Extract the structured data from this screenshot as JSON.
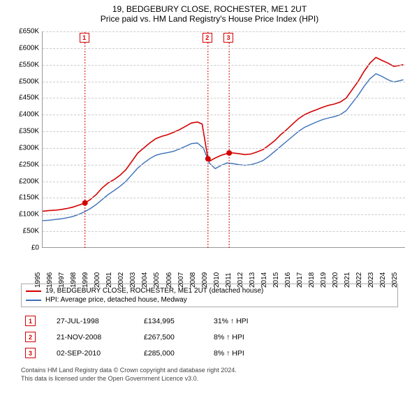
{
  "title": "19, BEDGEBURY CLOSE, ROCHESTER, ME1 2UT",
  "subtitle": "Price paid vs. HM Land Registry's House Price Index (HPI)",
  "chart": {
    "type": "line",
    "background_color": "#ffffff",
    "grid_color": "#cccccc",
    "axis_color": "#999999",
    "ylim": [
      0,
      650000
    ],
    "ytick_step": 50000,
    "yticks": [
      "£0",
      "£50K",
      "£100K",
      "£150K",
      "£200K",
      "£250K",
      "£300K",
      "£350K",
      "£400K",
      "£450K",
      "£500K",
      "£550K",
      "£600K",
      "£650K"
    ],
    "xlim": [
      1995,
      2025.5
    ],
    "xticks": [
      1995,
      1996,
      1997,
      1998,
      1999,
      2000,
      2001,
      2002,
      2003,
      2004,
      2005,
      2006,
      2007,
      2008,
      2009,
      2010,
      2011,
      2012,
      2013,
      2014,
      2015,
      2016,
      2017,
      2018,
      2019,
      2020,
      2021,
      2022,
      2023,
      2024,
      2025
    ],
    "series": [
      {
        "name": "19, BEDGEBURY CLOSE, ROCHESTER, ME1 2UT (detached house)",
        "color": "#d40000",
        "line_width": 1.6,
        "data": [
          [
            1995,
            110000
          ],
          [
            1995.5,
            112000
          ],
          [
            1996,
            113000
          ],
          [
            1996.5,
            115000
          ],
          [
            1997,
            118000
          ],
          [
            1997.5,
            122000
          ],
          [
            1998,
            128000
          ],
          [
            1998.56,
            134995
          ],
          [
            1999,
            145000
          ],
          [
            1999.5,
            160000
          ],
          [
            2000,
            180000
          ],
          [
            2000.5,
            195000
          ],
          [
            2001,
            205000
          ],
          [
            2001.5,
            218000
          ],
          [
            2002,
            235000
          ],
          [
            2002.5,
            260000
          ],
          [
            2003,
            285000
          ],
          [
            2003.5,
            300000
          ],
          [
            2004,
            315000
          ],
          [
            2004.5,
            328000
          ],
          [
            2005,
            335000
          ],
          [
            2005.5,
            340000
          ],
          [
            2006,
            347000
          ],
          [
            2006.5,
            355000
          ],
          [
            2007,
            365000
          ],
          [
            2007.5,
            375000
          ],
          [
            2008,
            378000
          ],
          [
            2008.4,
            372000
          ],
          [
            2008.89,
            267500
          ],
          [
            2009,
            260000
          ],
          [
            2009.5,
            270000
          ],
          [
            2010,
            278000
          ],
          [
            2010.67,
            285000
          ],
          [
            2011,
            285000
          ],
          [
            2011.5,
            283000
          ],
          [
            2012,
            280000
          ],
          [
            2012.5,
            282000
          ],
          [
            2013,
            288000
          ],
          [
            2013.5,
            295000
          ],
          [
            2014,
            308000
          ],
          [
            2014.5,
            322000
          ],
          [
            2015,
            340000
          ],
          [
            2015.5,
            355000
          ],
          [
            2016,
            372000
          ],
          [
            2016.5,
            388000
          ],
          [
            2017,
            400000
          ],
          [
            2017.5,
            408000
          ],
          [
            2018,
            415000
          ],
          [
            2018.5,
            422000
          ],
          [
            2019,
            428000
          ],
          [
            2019.5,
            432000
          ],
          [
            2020,
            438000
          ],
          [
            2020.5,
            450000
          ],
          [
            2021,
            475000
          ],
          [
            2021.5,
            500000
          ],
          [
            2022,
            530000
          ],
          [
            2022.5,
            555000
          ],
          [
            2023,
            572000
          ],
          [
            2023.5,
            563000
          ],
          [
            2024,
            555000
          ],
          [
            2024.5,
            545000
          ],
          [
            2025,
            548000
          ],
          [
            2025.3,
            550000
          ]
        ]
      },
      {
        "name": "HPI: Average price, detached house, Medway",
        "color": "#3a6fb7",
        "line_width": 1.4,
        "data": [
          [
            1995,
            82000
          ],
          [
            1995.5,
            83000
          ],
          [
            1996,
            85000
          ],
          [
            1996.5,
            87000
          ],
          [
            1997,
            90000
          ],
          [
            1997.5,
            94000
          ],
          [
            1998,
            100000
          ],
          [
            1998.5,
            108000
          ],
          [
            1999,
            118000
          ],
          [
            1999.5,
            130000
          ],
          [
            2000,
            145000
          ],
          [
            2000.5,
            160000
          ],
          [
            2001,
            172000
          ],
          [
            2001.5,
            185000
          ],
          [
            2002,
            200000
          ],
          [
            2002.5,
            220000
          ],
          [
            2003,
            240000
          ],
          [
            2003.5,
            255000
          ],
          [
            2004,
            268000
          ],
          [
            2004.5,
            278000
          ],
          [
            2005,
            283000
          ],
          [
            2005.5,
            286000
          ],
          [
            2006,
            290000
          ],
          [
            2006.5,
            297000
          ],
          [
            2007,
            305000
          ],
          [
            2007.5,
            313000
          ],
          [
            2008,
            315000
          ],
          [
            2008.5,
            300000
          ],
          [
            2009,
            255000
          ],
          [
            2009.5,
            238000
          ],
          [
            2010,
            248000
          ],
          [
            2010.5,
            255000
          ],
          [
            2011,
            253000
          ],
          [
            2011.5,
            250000
          ],
          [
            2012,
            248000
          ],
          [
            2012.5,
            250000
          ],
          [
            2013,
            255000
          ],
          [
            2013.5,
            262000
          ],
          [
            2014,
            275000
          ],
          [
            2014.5,
            290000
          ],
          [
            2015,
            305000
          ],
          [
            2015.5,
            320000
          ],
          [
            2016,
            335000
          ],
          [
            2016.5,
            350000
          ],
          [
            2017,
            362000
          ],
          [
            2017.5,
            370000
          ],
          [
            2018,
            378000
          ],
          [
            2018.5,
            385000
          ],
          [
            2019,
            390000
          ],
          [
            2019.5,
            394000
          ],
          [
            2020,
            400000
          ],
          [
            2020.5,
            412000
          ],
          [
            2021,
            435000
          ],
          [
            2021.5,
            458000
          ],
          [
            2022,
            485000
          ],
          [
            2022.5,
            508000
          ],
          [
            2023,
            523000
          ],
          [
            2023.5,
            515000
          ],
          [
            2024,
            505000
          ],
          [
            2024.5,
            498000
          ],
          [
            2025,
            502000
          ],
          [
            2025.3,
            505000
          ]
        ]
      }
    ],
    "markers": [
      {
        "n": "1",
        "x": 1998.56,
        "y": 134995,
        "color": "#d40000"
      },
      {
        "n": "2",
        "x": 2008.89,
        "y": 267500,
        "color": "#d40000"
      },
      {
        "n": "3",
        "x": 2010.67,
        "y": 285000,
        "color": "#d40000"
      }
    ]
  },
  "legend": {
    "items": [
      {
        "label": "19, BEDGEBURY CLOSE, ROCHESTER, ME1 2UT (detached house)",
        "color": "#d40000"
      },
      {
        "label": "HPI: Average price, detached house, Medway",
        "color": "#3a6fb7"
      }
    ]
  },
  "sales": [
    {
      "n": "1",
      "date": "27-JUL-1998",
      "price": "£134,995",
      "pct": "31% ↑ HPI",
      "color": "#d40000"
    },
    {
      "n": "2",
      "date": "21-NOV-2008",
      "price": "£267,500",
      "pct": "8% ↑ HPI",
      "color": "#d40000"
    },
    {
      "n": "3",
      "date": "02-SEP-2010",
      "price": "£285,000",
      "pct": "8% ↑ HPI",
      "color": "#d40000"
    }
  ],
  "footer": {
    "line1": "Contains HM Land Registry data © Crown copyright and database right 2024.",
    "line2": "This data is licensed under the Open Government Licence v3.0."
  }
}
